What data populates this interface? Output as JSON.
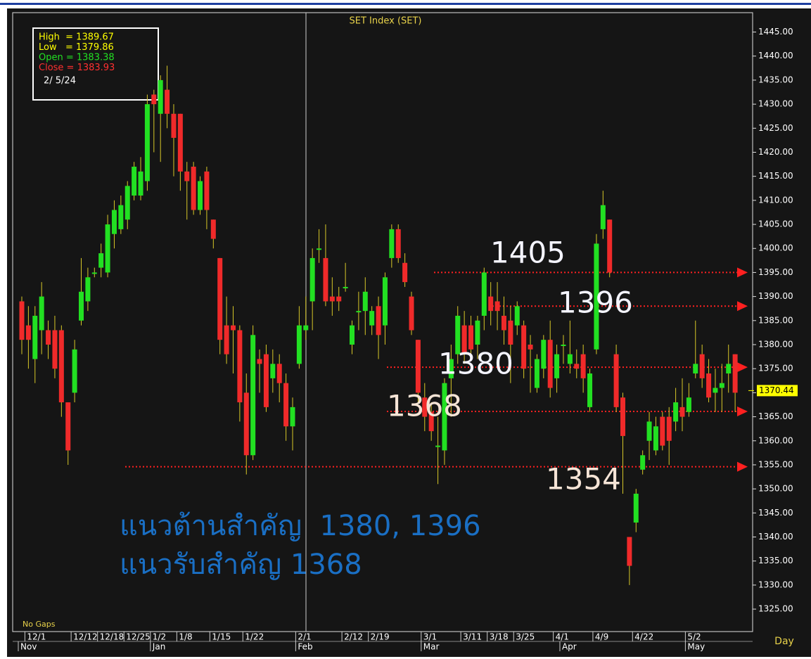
{
  "chart_data": {
    "type": "candlestick",
    "title": "SET Index (SET)",
    "categories": [
      null,
      "12/1",
      null,
      null,
      null,
      null,
      null,
      null,
      "12/12",
      null,
      null,
      null,
      "12/18",
      null,
      null,
      null,
      "12/25",
      null,
      null,
      null,
      "1/2",
      null,
      null,
      null,
      "1/8",
      null,
      null,
      null,
      null,
      "1/15",
      null,
      null,
      null,
      null,
      "1/22",
      null,
      null,
      null,
      null,
      null,
      null,
      null,
      "2/1",
      null,
      null,
      null,
      null,
      null,
      null,
      "2/12",
      null,
      null,
      null,
      "2/19",
      null,
      null,
      null,
      null,
      null,
      null,
      null,
      "3/1",
      null,
      null,
      null,
      null,
      null,
      "3/11",
      null,
      null,
      null,
      "3/18",
      null,
      null,
      null,
      "3/25",
      null,
      null,
      null,
      null,
      null,
      "4/1",
      null,
      null,
      null,
      null,
      null,
      "4/9",
      null,
      null,
      null,
      null,
      null,
      "4/22",
      null,
      null,
      null,
      null,
      null,
      null,
      null,
      "5/2",
      null,
      null,
      null,
      null,
      null,
      null,
      null
    ],
    "months": [
      {
        "value": 0,
        "label": "Nov"
      },
      {
        "value": 20,
        "label": "Jan"
      },
      {
        "value": 42,
        "label": "Feb"
      },
      {
        "value": 61,
        "label": "Mar"
      },
      {
        "value": 82,
        "label": "Apr"
      },
      {
        "value": 101,
        "label": "May"
      }
    ],
    "open": [
      1389,
      1384,
      1377,
      1383,
      1383,
      1383,
      1383,
      1368,
      1370,
      1385,
      1389,
      1395,
      1396,
      1395,
      1403,
      1404,
      1406,
      1411,
      1411,
      1414,
      1432,
      1428,
      1433,
      1428,
      1428,
      1416,
      1417,
      1408,
      1416,
      1406,
      1398,
      1384,
      1384,
      1383,
      1370,
      1357,
      1377,
      1378,
      1373,
      1376,
      1372,
      1363,
      1376,
      1383,
      1389,
      1400,
      1398,
      1390,
      1390,
      1392,
      1380,
      1387,
      1387,
      1384,
      1388,
      1384,
      1398,
      1404,
      1397,
      1390,
      1381,
      1369,
      1366,
      1359,
      1358,
      1373,
      1378,
      1384,
      1384,
      1380,
      1386,
      1390,
      1389,
      1386,
      1385,
      1384,
      1384,
      1380,
      1371,
      1375,
      1381,
      1373,
      1380,
      1376,
      1376,
      1378,
      1367,
      1379,
      1404,
      1406,
      1378,
      1369,
      1340,
      1343,
      1354,
      1360,
      1358,
      1365,
      1365,
      1364,
      1367,
      1366,
      1374,
      1378,
      1374,
      1370,
      1371,
      1374,
      1378
    ],
    "high": [
      1390,
      1388,
      1388,
      1393,
      1385,
      1386,
      1384,
      1368,
      1381,
      1398,
      1396,
      1396,
      1401,
      1407,
      1410,
      1411,
      1414,
      1418,
      1419,
      1432,
      1433,
      1436,
      1438,
      1430,
      1428,
      1418,
      1418,
      1415,
      1417,
      1406,
      1398,
      1390,
      1388,
      1384,
      1374,
      1384,
      1379,
      1380,
      1379,
      1378,
      1374,
      1369,
      1388,
      1390,
      1400,
      1404,
      1405,
      1394,
      1392,
      1397,
      1385,
      1391,
      1394,
      1388,
      1390,
      1395,
      1405,
      1405,
      1399,
      1391,
      1381,
      1372,
      1368,
      1365,
      1373,
      1380,
      1388,
      1387,
      1386,
      1386,
      1396,
      1393,
      1393,
      1390,
      1388,
      1389,
      1385,
      1382,
      1378,
      1382,
      1385,
      1380,
      1382,
      1385,
      1379,
      1380,
      1375,
      1403,
      1412,
      1406,
      1380,
      1370,
      1340,
      1350,
      1358,
      1366,
      1365,
      1366,
      1367,
      1371,
      1373,
      1372,
      1385,
      1380,
      1377,
      1375,
      1376,
      1380,
      1378
    ],
    "low": [
      1378,
      1375,
      1372,
      1378,
      1377,
      1373,
      1365,
      1355,
      1368,
      1384,
      1387,
      1394,
      1394,
      1394,
      1400,
      1403,
      1404,
      1410,
      1410,
      1412,
      1420,
      1418,
      1425,
      1415,
      1412,
      1406,
      1407,
      1407,
      1404,
      1400,
      1378,
      1376,
      1374,
      1364,
      1353,
      1356,
      1370,
      1366,
      1370,
      1368,
      1360,
      1358,
      1375,
      1381,
      1383,
      1397,
      1388,
      1386,
      1387,
      1391,
      1378,
      1383,
      1382,
      1382,
      1377,
      1380,
      1396,
      1397,
      1392,
      1382,
      1368,
      1362,
      1360,
      1351,
      1355,
      1365,
      1376,
      1376,
      1378,
      1377,
      1383,
      1384,
      1383,
      1380,
      1372,
      1382,
      1373,
      1370,
      1370,
      1373,
      1369,
      1370,
      1376,
      1374,
      1373,
      1370,
      1366,
      1378,
      1402,
      1394,
      1366,
      1349,
      1330,
      1341,
      1353,
      1356,
      1357,
      1358,
      1355,
      1362,
      1362,
      1365,
      1373,
      1371,
      1368,
      1366,
      1366,
      1370,
      1366
    ],
    "close": [
      1381,
      1381,
      1386,
      1390,
      1380,
      1375,
      1368,
      1358,
      1379,
      1391,
      1394,
      1395,
      1399,
      1405,
      1408,
      1409,
      1413,
      1417,
      1416,
      1430,
      1430,
      1435,
      1428,
      1423,
      1416,
      1414,
      1408,
      1414,
      1408,
      1402,
      1381,
      1378,
      1383,
      1368,
      1357,
      1382,
      1376,
      1367,
      1376,
      1372,
      1363,
      1367,
      1384,
      1384,
      1398,
      1400,
      1389,
      1389,
      1389,
      1392,
      1384,
      1387,
      1391,
      1387,
      1382,
      1394,
      1404,
      1398,
      1393,
      1383,
      1370,
      1365,
      1362,
      1359,
      1372,
      1377,
      1386,
      1378,
      1379,
      1385,
      1395,
      1387,
      1387,
      1383,
      1380,
      1388,
      1375,
      1379,
      1377,
      1381,
      1371,
      1378,
      1380,
      1378,
      1375,
      1373,
      1374,
      1401,
      1409,
      1395,
      1367,
      1361,
      1334,
      1349,
      1357,
      1364,
      1363,
      1359,
      1360,
      1368,
      1365,
      1369,
      1376,
      1373,
      1369,
      1371,
      1372,
      1376,
      1370
    ],
    "up_color": "#22e022",
    "down_color": "#f02a2a",
    "wick_color": "#d8c828",
    "ylim": [
      1320.33,
      1449.03
    ],
    "yticks": [
      {
        "value": 1445,
        "label": "1445.00"
      },
      {
        "value": 1440,
        "label": "1440.00"
      },
      {
        "value": 1435,
        "label": "1435.00"
      },
      {
        "value": 1430,
        "label": "1430.00"
      },
      {
        "value": 1425,
        "label": "1425.00"
      },
      {
        "value": 1420,
        "label": "1420.00"
      },
      {
        "value": 1415,
        "label": "1415.00"
      },
      {
        "value": 1410,
        "label": "1410.00"
      },
      {
        "value": 1405,
        "label": "1405.00"
      },
      {
        "value": 1400,
        "label": "1400.00"
      },
      {
        "value": 1395,
        "label": "1395.00"
      },
      {
        "value": 1390,
        "label": "1390.00"
      },
      {
        "value": 1385,
        "label": "1385.00"
      },
      {
        "value": 1380,
        "label": "1380.00"
      },
      {
        "value": 1375,
        "label": "1375.00"
      },
      {
        "value": 1370,
        "label": "1370.00"
      },
      {
        "value": 1365,
        "label": "1365.00"
      },
      {
        "value": 1360,
        "label": "1360.00"
      },
      {
        "value": 1355,
        "label": "1355.00"
      },
      {
        "value": 1350,
        "label": "1350.00"
      },
      {
        "value": 1345,
        "label": "1345.00"
      },
      {
        "value": 1340,
        "label": "1340.00"
      },
      {
        "value": 1335,
        "label": "1335.00"
      },
      {
        "value": 1330,
        "label": "1330.00"
      },
      {
        "value": 1325,
        "label": "1325.00"
      }
    ],
    "last_price": 1370.44,
    "info": [
      {
        "text": "High  = 1389.67",
        "color": "#ffff00"
      },
      {
        "text": "Low   = 1379.86",
        "color": "#ffff00"
      },
      {
        "text": "Open = 1383.38",
        "color": "#22e022"
      },
      {
        "text": "Close = 1383.93",
        "color": "#ff3030"
      },
      {
        "text": "2/ 5/24",
        "color": "#ffffff"
      }
    ],
    "levels": [
      1395,
      1388,
      1375.3,
      1366.1,
      1354.6
    ],
    "level_color": "#ff2020",
    "annotations": [
      "1405",
      "1396",
      "1380",
      "1368",
      "1354"
    ],
    "notes": [
      "แนวต้านสำคัญ  1380, 1396",
      "แนวรับสำคัญ 1368"
    ],
    "gap_label": "No Gaps",
    "period_label": "Day"
  }
}
